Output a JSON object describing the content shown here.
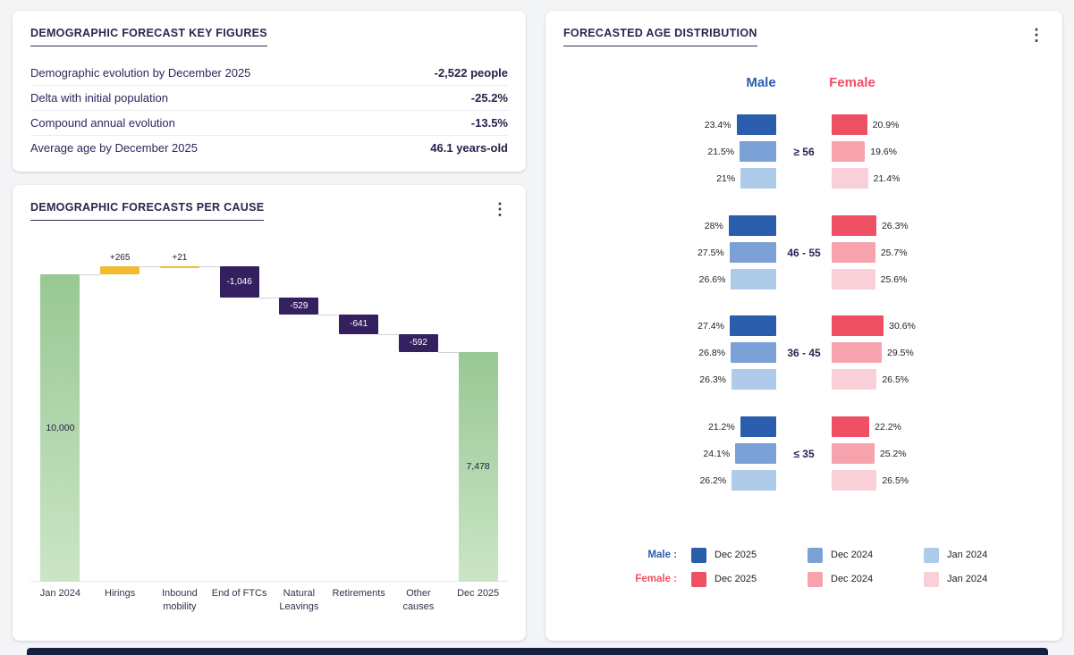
{
  "key_figures_card": {
    "title": "DEMOGRAPHIC FORECAST KEY FIGURES",
    "rows": [
      {
        "label": "Demographic evolution by December 2025",
        "value": "-2,522 people"
      },
      {
        "label": "Delta with initial population",
        "value": "-25.2%"
      },
      {
        "label": "Compound annual evolution",
        "value": "-13.5%"
      },
      {
        "label": "Average age by December 2025",
        "value": "46.1 years-old"
      }
    ]
  },
  "waterfall_card": {
    "title": "DEMOGRAPHIC FORECASTS PER CAUSE",
    "menu_icon": "kebab-menu"
  },
  "age_card": {
    "title": "FORECASTED AGE DISTRIBUTION",
    "menu_icon": "kebab-menu",
    "male_header": "Male",
    "female_header": "Female",
    "male_color": "#2a5dab",
    "female_color": "#ee4f63",
    "legend": {
      "male_label": "Male :",
      "female_label": "Female :",
      "entries": [
        "Dec 2025",
        "Dec 2024",
        "Jan 2024"
      ]
    }
  },
  "chart_data": [
    {
      "type": "bar",
      "variant": "waterfall",
      "title": "DEMOGRAPHIC FORECASTS PER CAUSE",
      "categories": [
        "Jan 2024",
        "Hirings",
        "Inbound mobility",
        "End of FTCs",
        "Natural Leavings",
        "Retirements",
        "Other causes",
        "Dec 2025"
      ],
      "values": [
        10000,
        265,
        21,
        -1046,
        -529,
        -641,
        -592,
        7478
      ],
      "bar_kinds": [
        "total",
        "increase",
        "increase",
        "decrease",
        "decrease",
        "decrease",
        "decrease",
        "total"
      ],
      "bar_labels": [
        "10,000",
        "+265",
        "+21",
        "-1,046",
        "-529",
        "-641",
        "-592",
        "7,478"
      ],
      "colors": {
        "total_gradient": [
          "#98c893",
          "#cbe5c6"
        ],
        "increase": "#f3ba2e",
        "decrease": "#34205f"
      },
      "ylim": [
        0,
        11000
      ],
      "grid": false,
      "legend": "none"
    },
    {
      "type": "bar",
      "variant": "butterfly",
      "title": "FORECASTED AGE DISTRIBUTION",
      "unit": "%",
      "age_groups": [
        "≥ 56",
        "46 - 55",
        "36 - 45",
        "≤ 35"
      ],
      "series": [
        "Dec 2025",
        "Dec 2024",
        "Jan 2024"
      ],
      "male": {
        "colors": [
          "#2a5dab",
          "#7ba1d6",
          "#aecbe9"
        ],
        "values": [
          [
            23.4,
            21.5,
            21.0
          ],
          [
            28.0,
            27.5,
            26.6
          ],
          [
            27.4,
            26.8,
            26.3
          ],
          [
            21.2,
            24.1,
            26.2
          ]
        ],
        "labels": [
          [
            "23.4%",
            "21.5%",
            "21%"
          ],
          [
            "28%",
            "27.5%",
            "26.6%"
          ],
          [
            "27.4%",
            "26.8%",
            "26.3%"
          ],
          [
            "21.2%",
            "24.1%",
            "26.2%"
          ]
        ]
      },
      "female": {
        "colors": [
          "#ee4f63",
          "#f6a3ae",
          "#fad0d8"
        ],
        "values": [
          [
            20.9,
            19.6,
            21.4
          ],
          [
            26.3,
            25.7,
            25.6
          ],
          [
            30.6,
            29.5,
            26.5
          ],
          [
            22.2,
            25.2,
            26.5
          ]
        ],
        "labels": [
          [
            "20.9%",
            "19.6%",
            "21.4%"
          ],
          [
            "26.3%",
            "25.7%",
            "25.6%"
          ],
          [
            "30.6%",
            "29.5%",
            "26.5%"
          ],
          [
            "22.2%",
            "25.2%",
            "26.5%"
          ]
        ]
      }
    }
  ]
}
